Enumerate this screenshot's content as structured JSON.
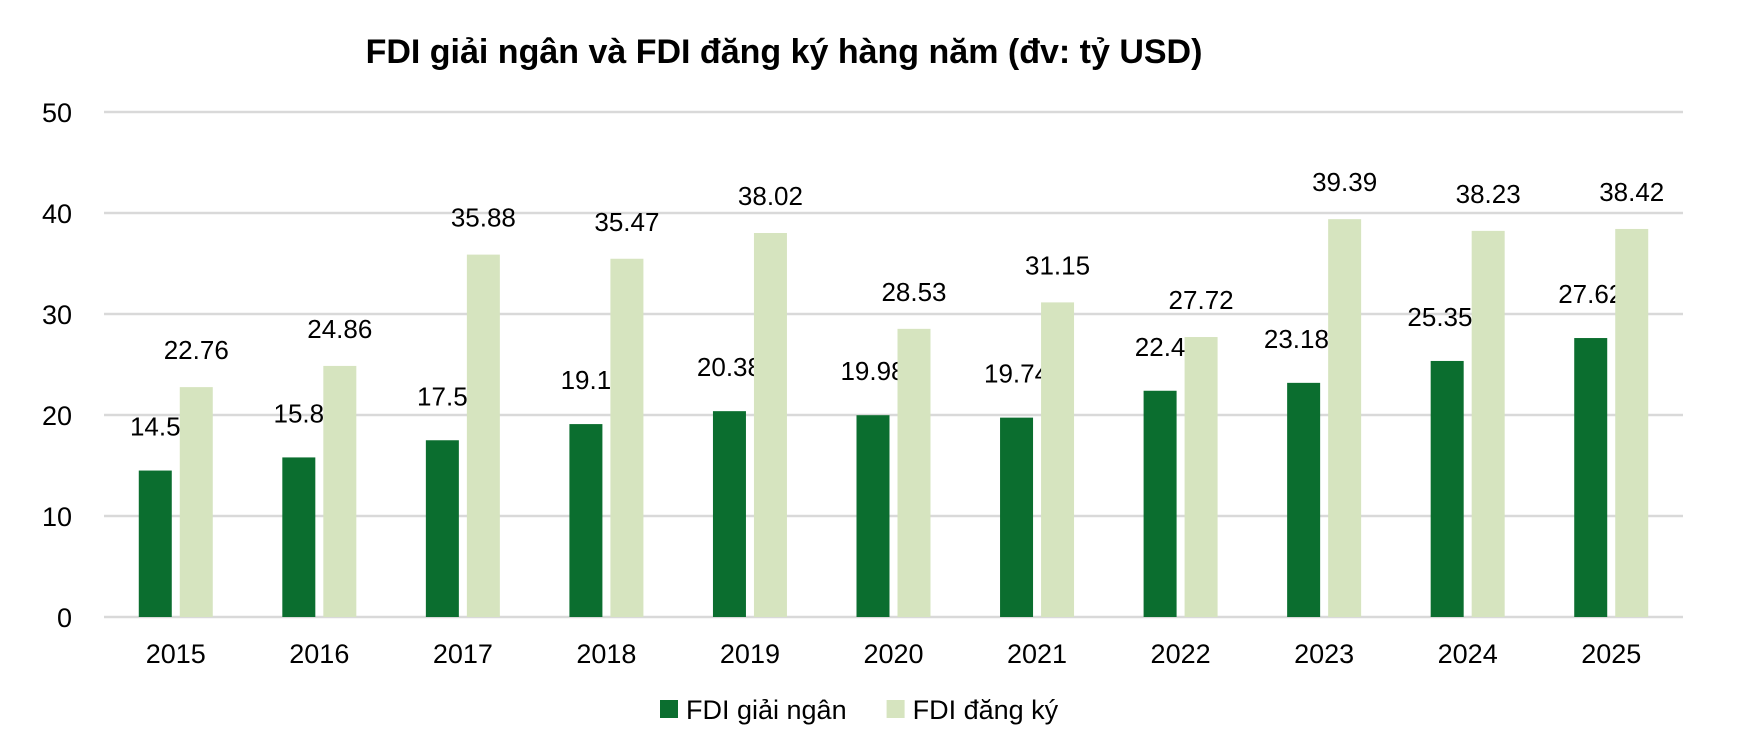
{
  "chart_data": {
    "type": "bar",
    "title": "FDI giải ngân và FDI đăng ký hàng năm (đv: tỷ USD)",
    "xlabel": "",
    "ylabel": "",
    "categories": [
      "2015",
      "2016",
      "2017",
      "2018",
      "2019",
      "2020",
      "2021",
      "2022",
      "2023",
      "2024",
      "2025"
    ],
    "series": [
      {
        "name": "FDI giải ngân",
        "color": "#0b6e2f",
        "values": [
          14.5,
          15.8,
          17.5,
          19.1,
          20.38,
          19.98,
          19.74,
          22.4,
          23.183,
          25.351,
          27.62
        ],
        "labels": [
          "14.5",
          "15.8",
          "17.5",
          "19.1",
          "20.38",
          "19.98",
          "19.74",
          "22.4",
          "23.183",
          "25.351",
          "27.62"
        ]
      },
      {
        "name": "FDI đăng ký",
        "color": "#d6e4bf",
        "values": [
          22.76,
          24.86,
          35.88,
          35.47,
          38.02,
          28.53,
          31.15,
          27.72,
          39.39,
          38.23,
          38.42
        ],
        "labels": [
          "22.76",
          "24.86",
          "35.88",
          "35.47",
          "38.02",
          "28.53",
          "31.15",
          "27.72",
          "39.39",
          "38.23",
          "38.42"
        ]
      }
    ],
    "ylim": [
      0,
      50
    ],
    "yticks": [
      "0",
      "10",
      "20",
      "30",
      "40",
      "50"
    ],
    "grid": true,
    "gridColor": "#d9d9d9",
    "legend": "bottom"
  }
}
